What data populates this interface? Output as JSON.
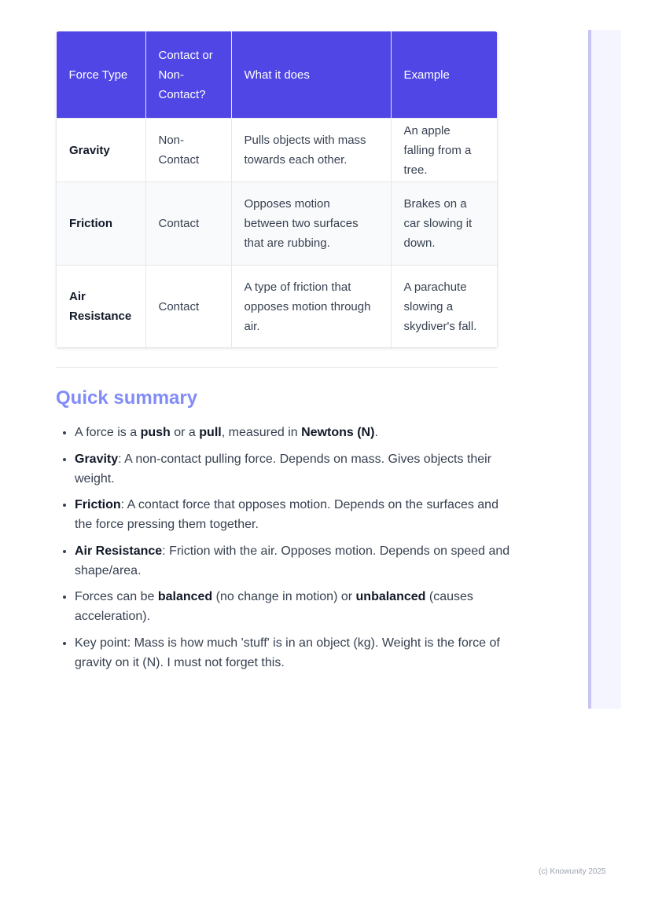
{
  "table": {
    "headers": [
      "Force Type",
      "Contact or Non-Contact?",
      "What it does",
      "Example"
    ],
    "rows": [
      [
        "Gravity",
        "Non-Contact",
        "Pulls objects with mass towards each other.",
        "An apple falling from a tree."
      ],
      [
        "Friction",
        "Contact",
        "Opposes motion between two surfaces that are rubbing.",
        "Brakes on a car slowing it down."
      ],
      [
        "Air Resistance",
        "Contact",
        "A type of friction that opposes motion through air.",
        "A parachute slowing a skydiver's fall."
      ]
    ]
  },
  "summary": {
    "title": "Quick summary",
    "items": [
      [
        {
          "t": "A force is a "
        },
        {
          "t": "push",
          "b": true
        },
        {
          "t": " or a "
        },
        {
          "t": "pull",
          "b": true
        },
        {
          "t": ", measured in "
        },
        {
          "t": "Newtons (N)",
          "b": true
        },
        {
          "t": "."
        }
      ],
      [
        {
          "t": "Gravity",
          "b": true
        },
        {
          "t": ": A non-contact pulling force. Depends on mass. Gives objects their weight."
        }
      ],
      [
        {
          "t": "Friction",
          "b": true
        },
        {
          "t": ": A contact force that opposes motion. Depends on the surfaces and the force pressing them together."
        }
      ],
      [
        {
          "t": "Air Resistance",
          "b": true
        },
        {
          "t": ": Friction with the air. Opposes motion. Depends on speed and shape/area."
        }
      ],
      [
        {
          "t": "Forces can be "
        },
        {
          "t": "balanced",
          "b": true
        },
        {
          "t": " (no change in motion) or "
        },
        {
          "t": "unbalanced",
          "b": true
        },
        {
          "t": " (causes acceleration)."
        }
      ],
      [
        {
          "t": "Key point: Mass is how much 'stuff' is in an object (kg). Weight is the force of gravity on it (N). I must not forget this."
        }
      ]
    ]
  },
  "footer": "(c) Knowunity 2025",
  "colors": {
    "header_bg": "#4f46e5",
    "heading": "#818cf8",
    "sidebar_border": "#c9c5f3"
  }
}
